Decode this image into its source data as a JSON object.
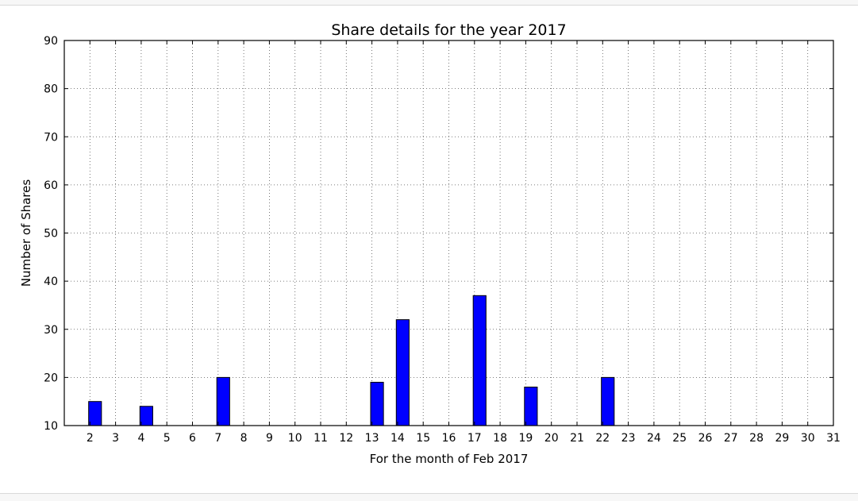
{
  "chart_data": {
    "type": "bar",
    "title": "Share details for the year 2017",
    "xlabel": "For the month of Feb 2017",
    "ylabel": "Number of Shares",
    "xlim": [
      1,
      31
    ],
    "ylim": [
      10,
      90
    ],
    "x_ticks": [
      2,
      3,
      4,
      5,
      6,
      7,
      8,
      9,
      10,
      11,
      12,
      13,
      14,
      15,
      16,
      17,
      18,
      19,
      20,
      21,
      22,
      23,
      24,
      25,
      26,
      27,
      28,
      29,
      30,
      31
    ],
    "y_ticks": [
      10,
      20,
      30,
      40,
      50,
      60,
      70,
      80,
      90
    ],
    "grid": true,
    "bar_color": "#0000ff",
    "bar_edge_color": "#000000",
    "bars": [
      {
        "x": 2,
        "value": 15
      },
      {
        "x": 4,
        "value": 14
      },
      {
        "x": 7,
        "value": 20
      },
      {
        "x": 13,
        "value": 19
      },
      {
        "x": 14,
        "value": 32
      },
      {
        "x": 17,
        "value": 37
      },
      {
        "x": 19,
        "value": 18
      },
      {
        "x": 22,
        "value": 20
      }
    ]
  }
}
